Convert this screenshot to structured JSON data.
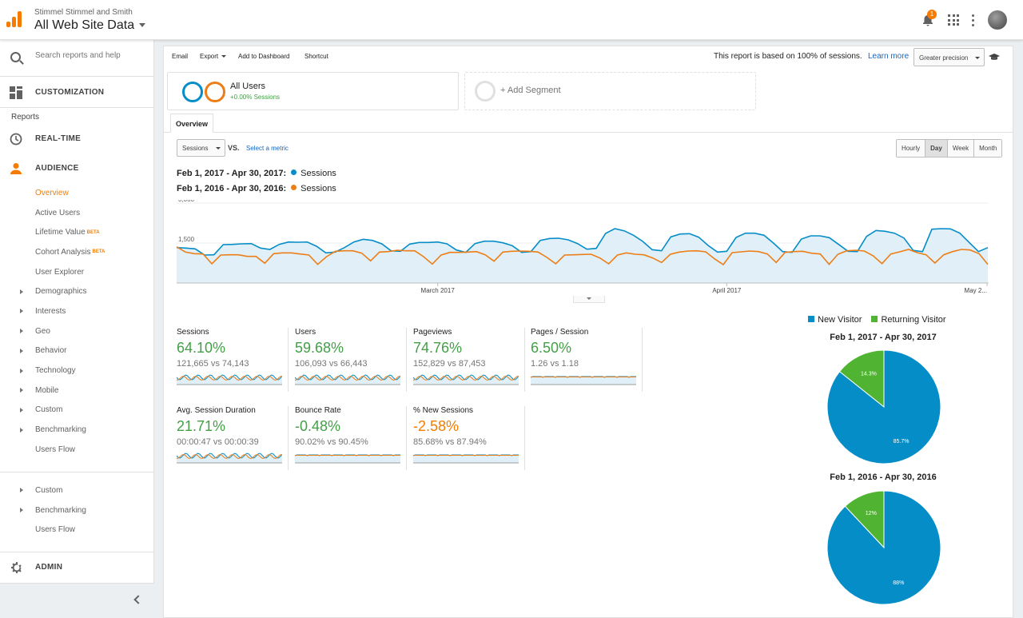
{
  "header": {
    "account": "Stimmel Stimmel and Smith",
    "property": "All Web Site Data",
    "notification_count": "1"
  },
  "sidebar": {
    "search_placeholder": "Search reports and help",
    "customization": "CUSTOMIZATION",
    "reports_heading": "Reports",
    "realtime": "REAL-TIME",
    "audience": "AUDIENCE",
    "audience_items": [
      {
        "label": "Overview",
        "active": true
      },
      {
        "label": "Active Users"
      },
      {
        "label": "Lifetime Value",
        "beta": "BETA"
      },
      {
        "label": "Cohort Analysis",
        "beta": "BETA"
      },
      {
        "label": "User Explorer"
      },
      {
        "label": "Demographics"
      },
      {
        "label": "Interests"
      },
      {
        "label": "Geo"
      },
      {
        "label": "Behavior"
      },
      {
        "label": "Technology"
      },
      {
        "label": "Mobile"
      },
      {
        "label": "Custom"
      },
      {
        "label": "Benchmarking"
      },
      {
        "label": "Users Flow"
      }
    ],
    "extra_items": [
      {
        "label": "Custom"
      },
      {
        "label": "Benchmarking"
      },
      {
        "label": "Users Flow"
      }
    ],
    "admin": "ADMIN"
  },
  "toolbar": {
    "email": "Email",
    "export": "Export",
    "add_dashboard": "Add to Dashboard",
    "shortcut": "Shortcut",
    "note": "This report is based on 100% of sessions.",
    "learn_more": "Learn more",
    "precision": "Greater precision"
  },
  "segments": {
    "all_users": "All Users",
    "all_users_sub": "+0.00% Sessions",
    "add_segment": "+ Add Segment"
  },
  "tabs": {
    "overview": "Overview"
  },
  "controls": {
    "metric": "Sessions",
    "vs": "VS.",
    "select_metric": "Select a metric",
    "granularity": [
      "Hourly",
      "Day",
      "Week",
      "Month"
    ],
    "selected_granularity": "Day"
  },
  "legend": {
    "range1": "Feb 1, 2017 - Apr 30, 2017:",
    "range2": "Feb 1, 2016 - Apr 30, 2016:",
    "metric": "Sessions",
    "color1": "#058dc7",
    "color2": "#ed7e17"
  },
  "chart_data": [
    {
      "type": "area",
      "title": "",
      "ylim": [
        0,
        3000
      ],
      "y_ticks": [
        "3,000",
        "1,500"
      ],
      "x_tick_labels": [
        "March 2017",
        "April 2017",
        "May 2..."
      ],
      "series": [
        {
          "name": "Sessions",
          "color": "#058dc7",
          "values": [
            1330,
            1310,
            1280,
            1050,
            1060,
            1440,
            1450,
            1470,
            1480,
            1310,
            1260,
            1450,
            1540,
            1530,
            1540,
            1380,
            1130,
            1160,
            1330,
            1540,
            1640,
            1600,
            1470,
            1210,
            1190,
            1460,
            1520,
            1520,
            1540,
            1470,
            1240,
            1150,
            1480,
            1570,
            1570,
            1510,
            1400,
            1150,
            1180,
            1600,
            1670,
            1680,
            1620,
            1480,
            1270,
            1300,
            1860,
            2040,
            1960,
            1790,
            1560,
            1250,
            1210,
            1730,
            1840,
            1850,
            1720,
            1410,
            1160,
            1190,
            1710,
            1870,
            1870,
            1790,
            1500,
            1180,
            1150,
            1650,
            1770,
            1770,
            1700,
            1450,
            1190,
            1180,
            1750,
            1970,
            1940,
            1870,
            1690,
            1220,
            1180,
            2020,
            2040,
            2030,
            1870,
            1520,
            1180,
            1330
          ]
        },
        {
          "name": "Sessions",
          "color": "#ed7e17",
          "values": [
            1360,
            1160,
            1100,
            1090,
            720,
            1050,
            1060,
            1060,
            1000,
            1000,
            740,
            1100,
            1130,
            1130,
            1090,
            1050,
            700,
            990,
            1190,
            1210,
            1210,
            1120,
            830,
            1160,
            1180,
            1230,
            1210,
            1210,
            990,
            710,
            1050,
            1150,
            1150,
            1160,
            1180,
            1060,
            820,
            1160,
            1190,
            1200,
            1190,
            1160,
            960,
            720,
            1050,
            1060,
            1070,
            1080,
            940,
            720,
            1050,
            1130,
            1080,
            1060,
            940,
            770,
            1080,
            1160,
            1200,
            1210,
            1170,
            910,
            690,
            1140,
            1170,
            1200,
            1180,
            1090,
            770,
            1150,
            1180,
            1190,
            1120,
            1090,
            700,
            1080,
            1210,
            1230,
            1200,
            1020,
            730,
            1090,
            1170,
            1260,
            1140,
            1060,
            750,
            1060,
            1180,
            1260,
            1240,
            1100,
            700
          ]
        }
      ]
    },
    {
      "type": "pie",
      "title": "Feb 1, 2017 - Apr 30, 2017",
      "categories": [
        "New Visitor",
        "Returning Visitor"
      ],
      "values": [
        85.7,
        14.3
      ],
      "labels": [
        "85.7%",
        "14.3%"
      ],
      "colors": [
        "#058dc7",
        "#50b432"
      ]
    },
    {
      "type": "pie",
      "title": "Feb 1, 2016 - Apr 30, 2016",
      "categories": [
        "New Visitor",
        "Returning Visitor"
      ],
      "values": [
        88,
        12
      ],
      "labels": [
        "88%",
        "12%"
      ],
      "colors": [
        "#058dc7",
        "#50b432"
      ]
    }
  ],
  "pie_legend": {
    "new": "New Visitor",
    "returning": "Returning Visitor"
  },
  "scorecards": [
    {
      "label": "Sessions",
      "pct": "64.10%",
      "dir": "up",
      "vals": "121,665 vs 74,143"
    },
    {
      "label": "Users",
      "pct": "59.68%",
      "dir": "up",
      "vals": "106,093 vs 66,443"
    },
    {
      "label": "Pageviews",
      "pct": "74.76%",
      "dir": "up",
      "vals": "152,829 vs 87,453"
    },
    {
      "label": "Pages / Session",
      "pct": "6.50%",
      "dir": "up",
      "vals": "1.26 vs 1.18"
    },
    {
      "label": "Avg. Session Duration",
      "pct": "21.71%",
      "dir": "up",
      "vals": "00:00:47 vs 00:00:39"
    },
    {
      "label": "Bounce Rate",
      "pct": "-0.48%",
      "dir": "up",
      "vals": "90.02% vs 90.45%"
    },
    {
      "label": "% New Sessions",
      "pct": "-2.58%",
      "dir": "down",
      "vals": "85.68% vs 87.94%"
    }
  ]
}
